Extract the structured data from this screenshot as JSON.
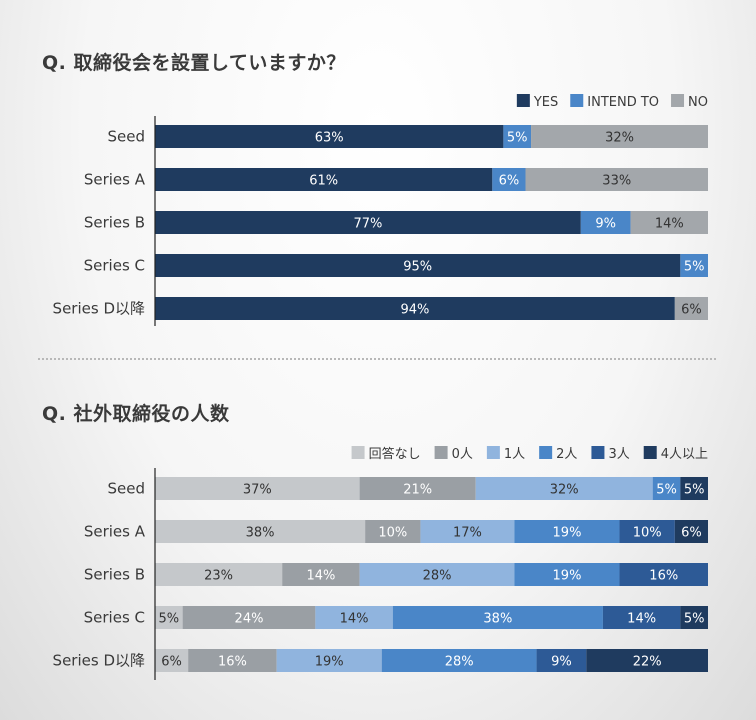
{
  "chart_data": [
    {
      "type": "bar",
      "orientation": "horizontal",
      "stacked": true,
      "title": "Q. 取締役会を設置していますか？",
      "categories": [
        "Seed",
        "Series A",
        "Series B",
        "Series C",
        "Series D以降"
      ],
      "series": [
        {
          "name": "YES",
          "color": "#1f3b5f",
          "values": [
            63,
            61,
            77,
            95,
            94
          ],
          "labels": [
            "63%",
            "61%",
            "77%",
            "95%",
            "94%"
          ]
        },
        {
          "name": "INTEND TO",
          "color": "#4a86c8",
          "values": [
            5,
            6,
            9,
            5,
            0
          ],
          "labels": [
            "5%",
            "6%",
            "9%",
            "5%",
            ""
          ]
        },
        {
          "name": "NO",
          "color": "#a3a7ab",
          "values": [
            32,
            33,
            14,
            0,
            6
          ],
          "labels": [
            "32%",
            "33%",
            "14%",
            "",
            "6%"
          ]
        }
      ],
      "xlim": [
        0,
        100
      ],
      "legend_position": "top-right"
    },
    {
      "type": "bar",
      "orientation": "horizontal",
      "stacked": true,
      "title": "Q. 社外取締役の人数",
      "categories": [
        "Seed",
        "Series A",
        "Series B",
        "Series C",
        "Series D以降"
      ],
      "series": [
        {
          "name": "回答なし",
          "color": "#c5c8cb",
          "values": [
            37,
            38,
            23,
            5,
            6
          ],
          "labels": [
            "37%",
            "38%",
            "23%",
            "5%",
            "6%"
          ]
        },
        {
          "name": "0人",
          "color": "#9a9fa4",
          "values": [
            21,
            10,
            14,
            24,
            16
          ],
          "labels": [
            "21%",
            "10%",
            "14%",
            "24%",
            "16%"
          ]
        },
        {
          "name": "1人",
          "color": "#90b4de",
          "values": [
            32,
            17,
            28,
            14,
            19
          ],
          "labels": [
            "32%",
            "17%",
            "28%",
            "14%",
            "19%"
          ]
        },
        {
          "name": "2人",
          "color": "#4a86c8",
          "values": [
            5,
            19,
            19,
            38,
            28
          ],
          "labels": [
            "5%",
            "19%",
            "19%",
            "38%",
            "28%"
          ]
        },
        {
          "name": "3人",
          "color": "#2d5a96",
          "values": [
            0,
            10,
            16,
            14,
            9
          ],
          "labels": [
            "",
            "10%",
            "16%",
            "14%",
            "9%"
          ]
        },
        {
          "name": "4人以上",
          "color": "#1f3b5f",
          "values": [
            5,
            6,
            0,
            5,
            22
          ],
          "labels": [
            "5%",
            "6%",
            "",
            "5%",
            "22%"
          ]
        }
      ],
      "xlim": [
        0,
        100
      ],
      "legend_position": "top-right"
    }
  ]
}
